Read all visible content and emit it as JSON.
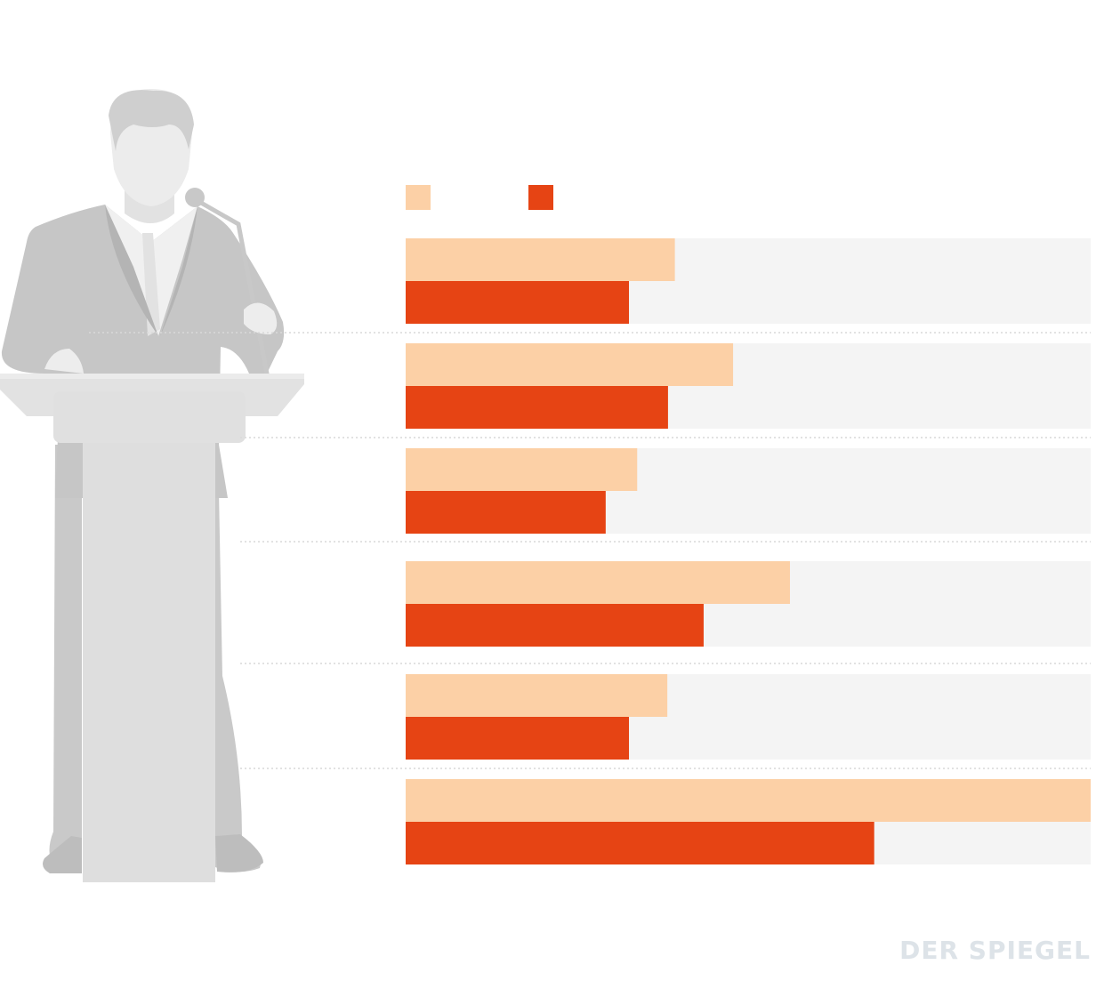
{
  "chart_data": {
    "type": "bar",
    "orientation": "horizontal",
    "title": "",
    "xlabel": "",
    "ylabel": "",
    "xlim": [
      0,
      100
    ],
    "categories": [
      "",
      "",
      "",
      "",
      "",
      ""
    ],
    "series": [
      {
        "color": "#fcd0a6",
        "values": [
          39.3,
          47.8,
          33.8,
          56.1,
          38.2,
          100
        ]
      },
      {
        "color": "#e64414",
        "values": [
          32.6,
          38.3,
          29.2,
          43.5,
          32.6,
          68.4
        ]
      }
    ],
    "track_color": "#f4f4f4",
    "legend": "top-left",
    "grid": false
  },
  "illustration": {
    "icon": "speaker-at-podium-icon",
    "color": "#d2d2d2"
  },
  "watermark": {
    "text": "DER SPIEGEL"
  }
}
